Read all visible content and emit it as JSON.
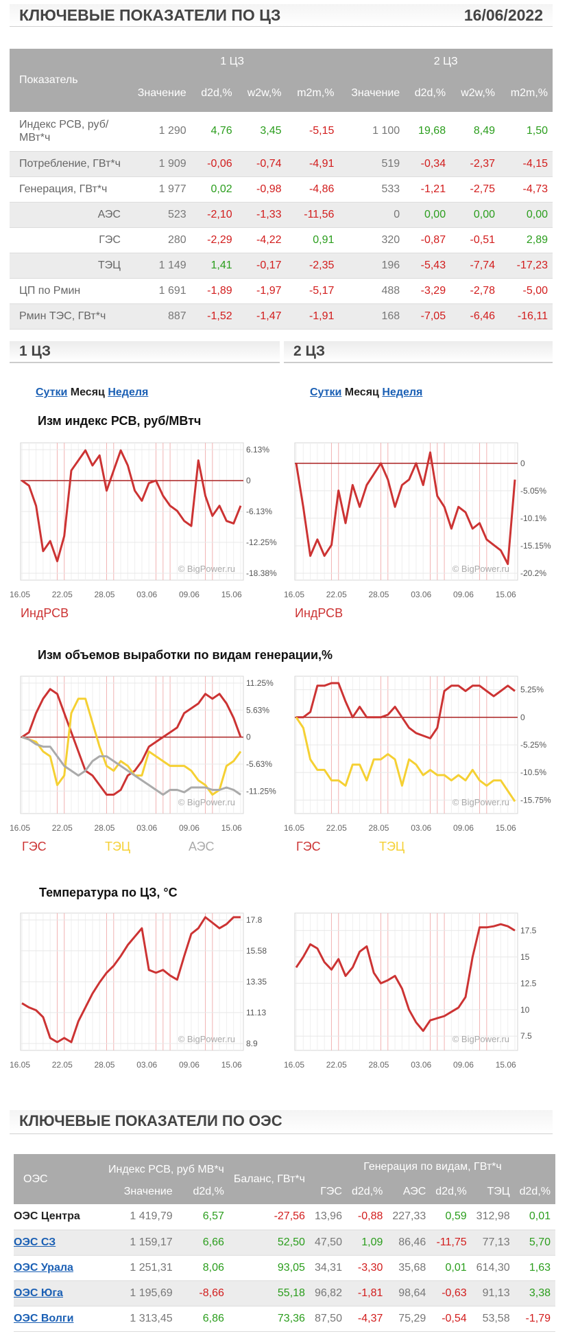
{
  "header": {
    "title": "КЛЮЧЕВЫЕ ПОКАЗАТЕЛИ ПО ЦЗ",
    "date": "16/06/2022"
  },
  "kp_table": {
    "col_indicator": "Показатель",
    "zone1": "1 ЦЗ",
    "zone2": "2 ЦЗ",
    "sub": [
      "Значение",
      "d2d,%",
      "w2w,%",
      "m2m,%",
      "Значение",
      "d2d,%",
      "w2w,%",
      "m2m,%"
    ],
    "rows": [
      {
        "name": "Индекс РСВ, руб/МВт*ч",
        "indent": false,
        "cells": [
          "1 290",
          "4,76",
          "3,45",
          "-5,15",
          "1 100",
          "19,68",
          "8,49",
          "1,50"
        ]
      },
      {
        "name": "Потребление, ГВт*ч",
        "indent": false,
        "cells": [
          "1 909",
          "-0,06",
          "-0,74",
          "-4,91",
          "519",
          "-0,34",
          "-2,37",
          "-4,15"
        ]
      },
      {
        "name": "Генерация, ГВт*ч",
        "indent": false,
        "cells": [
          "1 977",
          "0,02",
          "-0,98",
          "-4,86",
          "533",
          "-1,21",
          "-2,75",
          "-4,73"
        ]
      },
      {
        "name": "АЭС",
        "indent": true,
        "cells": [
          "523",
          "-2,10",
          "-1,33",
          "-11,56",
          "0",
          "0,00",
          "0,00",
          "0,00"
        ]
      },
      {
        "name": "ГЭС",
        "indent": true,
        "cells": [
          "280",
          "-2,29",
          "-4,22",
          "0,91",
          "320",
          "-0,87",
          "-0,51",
          "2,89"
        ]
      },
      {
        "name": "ТЭЦ",
        "indent": true,
        "cells": [
          "1 149",
          "1,41",
          "-0,17",
          "-2,35",
          "196",
          "-5,43",
          "-7,74",
          "-17,23"
        ]
      },
      {
        "name": "ЦП по Рмин",
        "indent": false,
        "cells": [
          "1 691",
          "-1,89",
          "-1,97",
          "-5,17",
          "488",
          "-3,29",
          "-2,78",
          "-5,00"
        ]
      },
      {
        "name": "Рмин ТЭС, ГВт*ч",
        "indent": false,
        "cells": [
          "887",
          "-1,52",
          "-1,47",
          "-1,91",
          "168",
          "-7,05",
          "-6,46",
          "-16,11"
        ]
      }
    ]
  },
  "sections": {
    "z1": "1 ЦЗ",
    "z2": "2 ЦЗ"
  },
  "tabs": {
    "day": "Сутки",
    "month": "Месяц",
    "week": "Неделя"
  },
  "chart_titles": {
    "price": "Изм индекс РСВ, руб/МВтч",
    "gen": "Изм объемов выработки по видам генерации,%",
    "temp": "Температура по ЦЗ, °С"
  },
  "watermark": "© BigPower.ru",
  "x_ticks": [
    "16.05",
    "22.05",
    "28.05",
    "03.06",
    "09.06",
    "15.06"
  ],
  "legends": {
    "price": "ИндРСВ",
    "ges": "ГЭС",
    "tec": "ТЭЦ",
    "aes": "АЭС"
  },
  "colors": {
    "red": "#cc3333",
    "yellow": "#f5d033",
    "gray": "#aaaaaa",
    "green": "#2a9d1c",
    "neg": "#d21c1c"
  },
  "chart_data": [
    {
      "type": "line",
      "id": "price1",
      "x": [
        "16.05",
        "17.05",
        "18.05",
        "19.05",
        "20.05",
        "21.05",
        "22.05",
        "23.05",
        "24.05",
        "25.05",
        "26.05",
        "27.05",
        "28.05",
        "29.05",
        "30.05",
        "31.05",
        "01.06",
        "02.06",
        "03.06",
        "04.06",
        "05.06",
        "06.06",
        "07.06",
        "08.06",
        "09.06",
        "10.06",
        "11.06",
        "12.06",
        "13.06",
        "14.06",
        "15.06",
        "16.06"
      ],
      "series": [
        {
          "name": "ИндРСВ",
          "values": [
            0,
            -1,
            -5,
            -14,
            -12,
            -16,
            -11,
            2,
            4,
            6,
            3,
            5,
            -2,
            2,
            6,
            3,
            -2,
            -4,
            -0.5,
            0,
            -3,
            -5,
            -6,
            -8,
            -9,
            4,
            -3,
            -7,
            -5,
            -8,
            -8.5,
            -5
          ]
        }
      ],
      "yticks": [
        "6.13%",
        "0",
        "-6.13%",
        "-12.25%",
        "-18.38%"
      ],
      "ylim": [
        -18.38,
        6.13
      ]
    },
    {
      "type": "line",
      "id": "price2",
      "x": [
        "16.05",
        "17.05",
        "18.05",
        "19.05",
        "20.05",
        "21.05",
        "22.05",
        "23.05",
        "24.05",
        "25.05",
        "26.05",
        "27.05",
        "28.05",
        "29.05",
        "30.05",
        "31.05",
        "01.06",
        "02.06",
        "03.06",
        "04.06",
        "05.06",
        "06.06",
        "07.06",
        "08.06",
        "09.06",
        "10.06",
        "11.06",
        "12.06",
        "13.06",
        "14.06",
        "15.06",
        "16.06"
      ],
      "series": [
        {
          "name": "ИндРСВ",
          "values": [
            0,
            -8,
            -17,
            -14,
            -17,
            -15,
            -5,
            -11,
            -4,
            -8,
            -4,
            -2,
            0,
            -3,
            -8,
            -4,
            -3,
            0,
            -4,
            2,
            -6,
            -8,
            -12,
            -8,
            -9,
            -12,
            -11,
            -14,
            -15,
            -16,
            -18.5,
            -3
          ]
        }
      ],
      "yticks": [
        "0",
        "-5.05%",
        "-10.1%",
        "-15.15%",
        "-20.2%"
      ],
      "ylim": [
        -20.2,
        2.5
      ]
    },
    {
      "type": "line",
      "id": "gen1",
      "x": [
        "16.05",
        "17.05",
        "18.05",
        "19.05",
        "20.05",
        "21.05",
        "22.05",
        "23.05",
        "24.05",
        "25.05",
        "26.05",
        "27.05",
        "28.05",
        "29.05",
        "30.05",
        "31.05",
        "01.06",
        "02.06",
        "03.06",
        "04.06",
        "05.06",
        "06.06",
        "07.06",
        "08.06",
        "09.06",
        "10.06",
        "11.06",
        "12.06",
        "13.06",
        "14.06",
        "15.06",
        "16.06"
      ],
      "series": [
        {
          "name": "ГЭС",
          "values": [
            0,
            1,
            5,
            8,
            10,
            9,
            5,
            1,
            -3,
            -7,
            -8,
            -10,
            -12,
            -12,
            -11,
            -8,
            -7,
            -5,
            -2,
            -1,
            0,
            1,
            2,
            5,
            6,
            7,
            9,
            8,
            9,
            7,
            4,
            0
          ]
        },
        {
          "name": "ТЭЦ",
          "values": [
            0,
            -0.5,
            -1,
            -3,
            -4,
            -10,
            -8,
            5,
            8,
            8,
            3,
            -2,
            -6,
            -7,
            -5,
            -6,
            -8,
            -8,
            -3,
            -4,
            -5,
            -6,
            -6,
            -6,
            -7,
            -9,
            -10,
            -12,
            -11,
            -6,
            -5,
            -3
          ]
        },
        {
          "name": "АЭС",
          "values": [
            0,
            -0.5,
            -1.5,
            -2,
            -2,
            -4,
            -6,
            -7,
            -8,
            -7,
            -5,
            -4,
            -4,
            -5,
            -6,
            -7,
            -8,
            -9,
            -10,
            -11,
            -12,
            -11,
            -11,
            -11.5,
            -10.5,
            -10.5,
            -10.5,
            -11,
            -11,
            -10.5,
            -11,
            -12
          ]
        }
      ],
      "yticks": [
        "11.25%",
        "5.63%",
        "0",
        "-5.63%",
        "-11.25%"
      ],
      "ylim": [
        -14.5,
        11.25
      ]
    },
    {
      "type": "line",
      "id": "gen2",
      "x": [
        "16.05",
        "17.05",
        "18.05",
        "19.05",
        "20.05",
        "21.05",
        "22.05",
        "23.05",
        "24.05",
        "25.05",
        "26.05",
        "27.05",
        "28.05",
        "29.05",
        "30.05",
        "31.05",
        "01.06",
        "02.06",
        "03.06",
        "04.06",
        "05.06",
        "06.06",
        "07.06",
        "08.06",
        "09.06",
        "10.06",
        "11.06",
        "12.06",
        "13.06",
        "14.06",
        "15.06",
        "16.06"
      ],
      "series": [
        {
          "name": "ГЭС",
          "values": [
            0,
            0,
            1,
            6,
            6,
            6.5,
            6.5,
            3,
            0,
            2,
            0,
            0,
            0,
            0.5,
            2,
            0,
            -2,
            -3,
            -3.5,
            -4,
            -2,
            5,
            6,
            6,
            5,
            6,
            6,
            5,
            4,
            5,
            6,
            5
          ]
        },
        {
          "name": "ТЭЦ",
          "values": [
            0,
            -2,
            -8,
            -10,
            -10,
            -12,
            -12,
            -13,
            -9,
            -9,
            -12,
            -8,
            -8,
            -7,
            -8,
            -13,
            -8,
            -9,
            -11,
            -10,
            -11,
            -11,
            -12,
            -11,
            -12,
            -10,
            -12,
            -13,
            -12,
            -12,
            -14,
            -16
          ]
        }
      ],
      "yticks": [
        "5.25%",
        "0",
        "-5.25%",
        "-10.5%",
        "-15.75%"
      ],
      "ylim": [
        -17,
        6.5
      ]
    },
    {
      "type": "line",
      "id": "temp1",
      "x": [
        "16.05",
        "17.05",
        "18.05",
        "19.05",
        "20.05",
        "21.05",
        "22.05",
        "23.05",
        "24.05",
        "25.05",
        "26.05",
        "27.05",
        "28.05",
        "29.05",
        "30.05",
        "31.05",
        "01.06",
        "02.06",
        "03.06",
        "04.06",
        "05.06",
        "06.06",
        "07.06",
        "08.06",
        "09.06",
        "10.06",
        "11.06",
        "12.06",
        "13.06",
        "14.06",
        "15.06",
        "16.06"
      ],
      "series": [
        {
          "name": "Температура",
          "values": [
            11.8,
            11.5,
            11.3,
            10.8,
            9.3,
            9,
            9.3,
            9,
            10.5,
            11.5,
            12.5,
            13.3,
            14,
            14.5,
            15.2,
            16,
            16.6,
            17.2,
            14.2,
            14,
            14.2,
            13.8,
            13.5,
            15.2,
            16.8,
            17.2,
            18,
            17.6,
            17.2,
            17.5,
            18,
            18
          ]
        }
      ],
      "yticks": [
        "17.8",
        "15.58",
        "13.35",
        "11.13",
        "8.9"
      ],
      "ylim": [
        8.9,
        17.8
      ]
    },
    {
      "type": "line",
      "id": "temp2",
      "x": [
        "16.05",
        "17.05",
        "18.05",
        "19.05",
        "20.05",
        "21.05",
        "22.05",
        "23.05",
        "24.05",
        "25.05",
        "26.05",
        "27.05",
        "28.05",
        "29.05",
        "30.05",
        "31.05",
        "01.06",
        "02.06",
        "03.06",
        "04.06",
        "05.06",
        "06.06",
        "07.06",
        "08.06",
        "09.06",
        "10.06",
        "11.06",
        "12.06",
        "13.06",
        "14.06",
        "15.06",
        "16.06"
      ],
      "series": [
        {
          "name": "Температура",
          "values": [
            14,
            15,
            16.2,
            15.8,
            14.5,
            13.8,
            14.8,
            13.2,
            14,
            15.5,
            16,
            13.5,
            12.5,
            12.8,
            13.2,
            12,
            10,
            8.8,
            8,
            9,
            9.2,
            9.4,
            9.8,
            10.2,
            11.2,
            15,
            17.8,
            17.8,
            17.9,
            18.1,
            17.9,
            17.5
          ]
        }
      ],
      "yticks": [
        "17.5",
        "15",
        "12.5",
        "10",
        "7.5"
      ],
      "ylim": [
        6.8,
        18.5
      ]
    }
  ],
  "oes_header": "КЛЮЧЕВЫЕ ПОКАЗАТЕЛИ ПО ОЭС",
  "oes_table": {
    "col_oes": "ОЭС",
    "col_index": "Индекс РСВ, руб МВ*ч",
    "col_balance": "Баланс, ГВт*ч",
    "col_gen": "Генерация по видам, ГВт*ч",
    "sub": [
      "Значение",
      "d2d,%",
      "ГЭС",
      "d2d,%",
      "АЭС",
      "d2d,%",
      "ТЭЦ",
      "d2d,%"
    ],
    "rows": [
      {
        "name": "ОЭС Центра",
        "link": false,
        "cells": [
          "1 419,79",
          "6,57",
          "-27,56",
          "13,96",
          "-0,88",
          "227,33",
          "0,59",
          "312,98",
          "0,01"
        ]
      },
      {
        "name": "ОЭС СЗ",
        "link": true,
        "cells": [
          "1 159,17",
          "6,66",
          "52,50",
          "47,50",
          "1,09",
          "86,46",
          "-11,75",
          "77,13",
          "5,70"
        ]
      },
      {
        "name": "ОЭС Урала",
        "link": true,
        "cells": [
          "1 251,31",
          "8,06",
          "93,05",
          "34,31",
          "-3,30",
          "35,68",
          "0,01",
          "614,30",
          "1,63"
        ]
      },
      {
        "name": "ОЭС Юга",
        "link": true,
        "cells": [
          "1 195,69",
          "-8,66",
          "55,18",
          "96,82",
          "-1,81",
          "98,64",
          "-0,63",
          "91,13",
          "3,38"
        ]
      },
      {
        "name": "ОЭС Волги",
        "link": true,
        "cells": [
          "1 313,45",
          "6,86",
          "73,36",
          "87,50",
          "-4,37",
          "75,29",
          "-0,54",
          "53,58",
          "-1,79"
        ]
      }
    ]
  }
}
